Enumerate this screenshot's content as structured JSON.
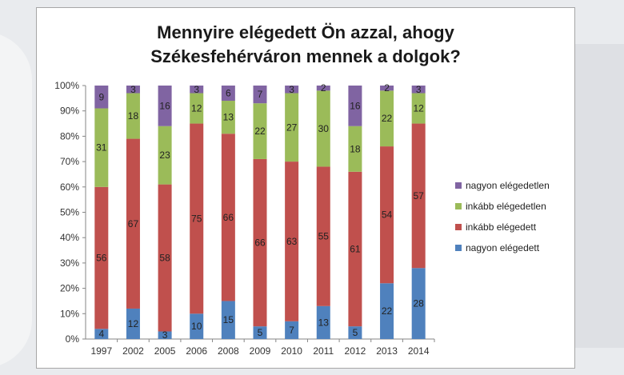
{
  "chart_data": {
    "type": "bar",
    "stacked": true,
    "title_line1": "Mennyire elégedett Ön azzal, ahogy",
    "title_line2": "Székesfehérváron mennek a dolgok?",
    "categories": [
      "1997",
      "2002",
      "2005",
      "2006",
      "2008",
      "2009",
      "2010",
      "2011",
      "2012",
      "2013",
      "2014"
    ],
    "series": [
      {
        "name": "nagyon elégedett",
        "color": "#4f81bd",
        "values": [
          4,
          12,
          3,
          10,
          15,
          5,
          7,
          13,
          5,
          22,
          28
        ]
      },
      {
        "name": "inkább elégedett",
        "color": "#c0504d",
        "values": [
          56,
          67,
          58,
          75,
          66,
          66,
          63,
          55,
          61,
          54,
          57
        ]
      },
      {
        "name": "inkább elégedetlen",
        "color": "#9bbb59",
        "values": [
          31,
          18,
          23,
          12,
          13,
          22,
          27,
          30,
          18,
          22,
          12
        ]
      },
      {
        "name": "nagyon elégedetlen",
        "color": "#8064a2",
        "values": [
          9,
          3,
          16,
          3,
          6,
          7,
          3,
          2,
          16,
          2,
          3
        ]
      }
    ],
    "yticks": [
      "0%",
      "10%",
      "20%",
      "30%",
      "40%",
      "50%",
      "60%",
      "70%",
      "80%",
      "90%",
      "100%"
    ],
    "ylim": [
      0,
      100
    ],
    "legend_position": "right",
    "grid": false
  }
}
